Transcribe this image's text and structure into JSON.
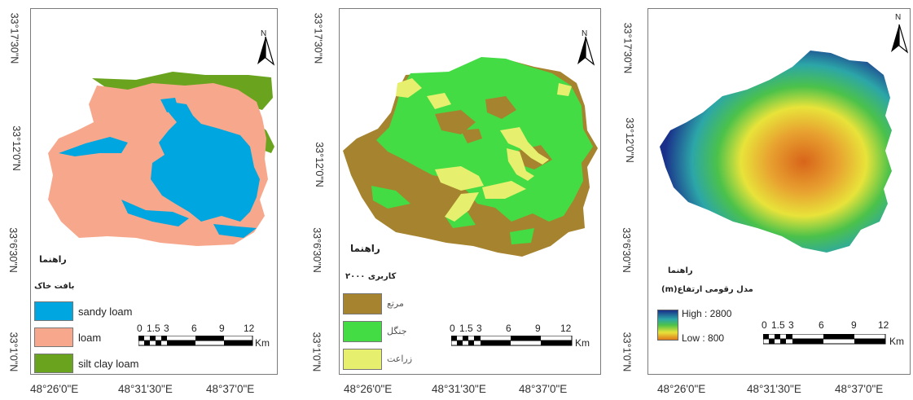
{
  "panels": [
    {
      "north": "N",
      "y_labels": [
        "33°17'30\"N",
        "33°12'0\"N",
        "33°6'30\"N",
        "33°1'0\"N"
      ],
      "x_labels": [
        "48°26'0\"E",
        "48°31'30\"E",
        "48°37'0\"E"
      ],
      "legend_title": "راهنما",
      "legend_subtitle": "بافت خاک",
      "legend_items": [
        {
          "label": "sandy loam",
          "color": "#00a6df"
        },
        {
          "label": "loam",
          "color": "#f7a88c"
        },
        {
          "label": "silt clay loam",
          "color": "#6aa41e"
        }
      ],
      "scale_numbers": [
        "0",
        "1.5",
        "3",
        "6",
        "9",
        "12"
      ],
      "scale_unit": "Km"
    },
    {
      "north": "N",
      "y_labels": [
        "33°17'30\"N",
        "33°12'0\"N",
        "33°6'30\"N",
        "33°1'0\"N"
      ],
      "x_labels": [
        "48°26'0\"E",
        "48°31'30\"E",
        "48°37'0\"E"
      ],
      "legend_title": "راهنما",
      "legend_subtitle": "کاربری ۲۰۰۰",
      "legend_items": [
        {
          "label": "مرتع",
          "color": "#a6832e"
        },
        {
          "label": "جنگل",
          "color": "#44dc44"
        },
        {
          "label": "زراعت",
          "color": "#e6f06e"
        }
      ],
      "scale_numbers": [
        "0",
        "1.5",
        "3",
        "6",
        "9",
        "12"
      ],
      "scale_unit": "Km"
    },
    {
      "north": "N",
      "y_labels": [
        "33°17'30\"N",
        "33°12'0\"N",
        "33°6'30\"N",
        "33°1'0\"N"
      ],
      "x_labels": [
        "48°26'0\"E",
        "48°31'30\"E",
        "48°37'0\"E"
      ],
      "legend_title": "راهنما",
      "legend_subtitle": "مدل رقومی ارتفاع(m)",
      "gradient_high": "High : 2800",
      "gradient_low": "Low : 800",
      "gradient_colors": [
        "#1a2f8a",
        "#2ca6a8",
        "#4cc24a",
        "#e8e33a",
        "#e07a1a"
      ],
      "scale_numbers": [
        "0",
        "1.5",
        "3",
        "6",
        "9",
        "12"
      ],
      "scale_unit": "Km"
    }
  ]
}
